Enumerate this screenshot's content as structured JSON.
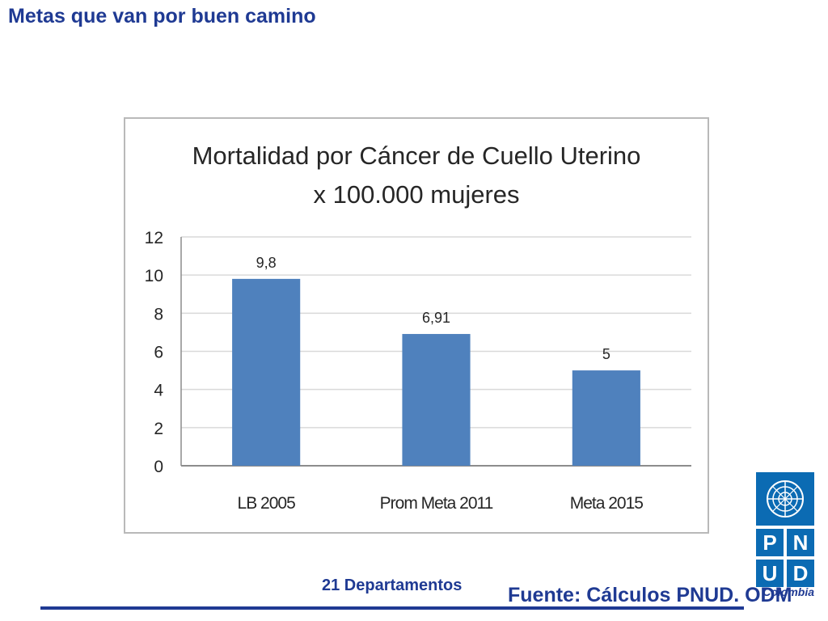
{
  "slide": {
    "title": "Metas que van por buen camino",
    "footer_note": "21 Departamentos",
    "source": "Fuente: Cálculos PNUD. ODM"
  },
  "logo": {
    "letters": [
      "P",
      "N",
      "U",
      "D"
    ],
    "country": "Colombia",
    "color": "#0b6bb3",
    "icon": "un-emblem-icon"
  },
  "chart_data": {
    "type": "bar",
    "title": "Mortalidad por Cáncer de Cuello Uterino",
    "subtitle": "x 100.000 mujeres",
    "categories": [
      "LB 2005",
      "Prom Meta 2011",
      "Meta 2015"
    ],
    "values": [
      9.8,
      6.91,
      5
    ],
    "value_labels": [
      "9,8",
      "6,91",
      "5"
    ],
    "ylim": [
      0,
      12
    ],
    "yticks": [
      0,
      2,
      4,
      6,
      8,
      10,
      12
    ],
    "grid": true,
    "legend": "none",
    "bar_color": "#4f81bd"
  }
}
